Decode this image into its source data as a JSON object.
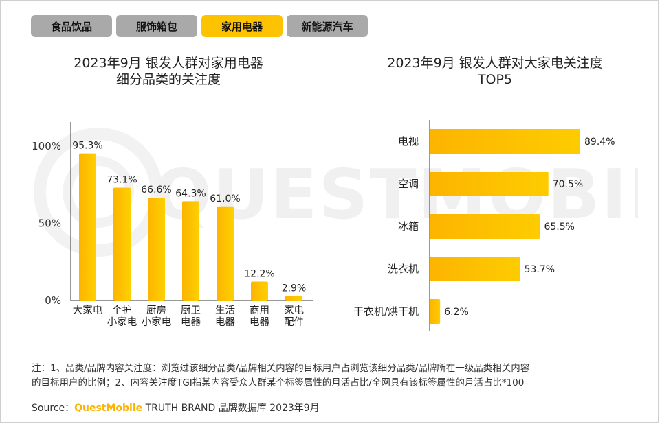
{
  "tabs": [
    {
      "label": "食品饮品",
      "active": false
    },
    {
      "label": "服饰箱包",
      "active": false
    },
    {
      "label": "家用电器",
      "active": true
    },
    {
      "label": "新能源汽车",
      "active": false
    }
  ],
  "watermark_text": "QUESTMOBILE",
  "colors": {
    "bar": "#fdc300",
    "bar_light": "#fde27a",
    "tab_active": "#fdc300",
    "tab_inactive": "#a9a9a9",
    "brand": "#fdb400"
  },
  "chart_data": [
    {
      "type": "bar",
      "title_lines": [
        "2023年9月 银发人群对家用电器",
        "细分品类的关注度"
      ],
      "categories": [
        [
          "大家电"
        ],
        [
          "个护",
          "小家电"
        ],
        [
          "厨房",
          "小家电"
        ],
        [
          "厨卫",
          "电器"
        ],
        [
          "生活",
          "电器"
        ],
        [
          "商用",
          "电器"
        ],
        [
          "家电",
          "配件"
        ]
      ],
      "values": [
        95.3,
        73.1,
        66.6,
        64.3,
        61.0,
        12.2,
        2.9
      ],
      "value_labels": [
        "95.3%",
        "73.1%",
        "66.6%",
        "64.3%",
        "61.0%",
        "12.2%",
        "2.9%"
      ],
      "ylim": [
        0,
        100
      ],
      "yticks": [
        "0%",
        "50%",
        "100%"
      ],
      "ytick_values": [
        0,
        50,
        100
      ],
      "grid": false
    },
    {
      "type": "bar",
      "orientation": "horizontal",
      "title_lines": [
        "2023年9月 银发人群对大家电关注度",
        "TOP5"
      ],
      "categories": [
        "电视",
        "空调",
        "冰箱",
        "洗衣机",
        "干衣机/烘干机"
      ],
      "values": [
        89.4,
        70.5,
        65.5,
        53.7,
        6.2
      ],
      "value_labels": [
        "89.4%",
        "70.5%",
        "65.5%",
        "53.7%",
        "6.2%"
      ],
      "grid": false
    }
  ],
  "footer": {
    "note_line1": "注：1、品类/品牌内容关注度：浏览过该细分品类/品牌相关内容的目标用户占浏览该细分品类/品牌所在一级品类相关内容",
    "note_line2": "的目标用户的比例；2、内容关注度TGI指某内容受众人群某个标签属性的月活占比/全网具有该标签属性的月活占比*100。",
    "source_prefix": "Source：",
    "source_brand": "QuestMobile",
    "source_suffix": " TRUTH BRAND 品牌数据库 2023年9月"
  }
}
